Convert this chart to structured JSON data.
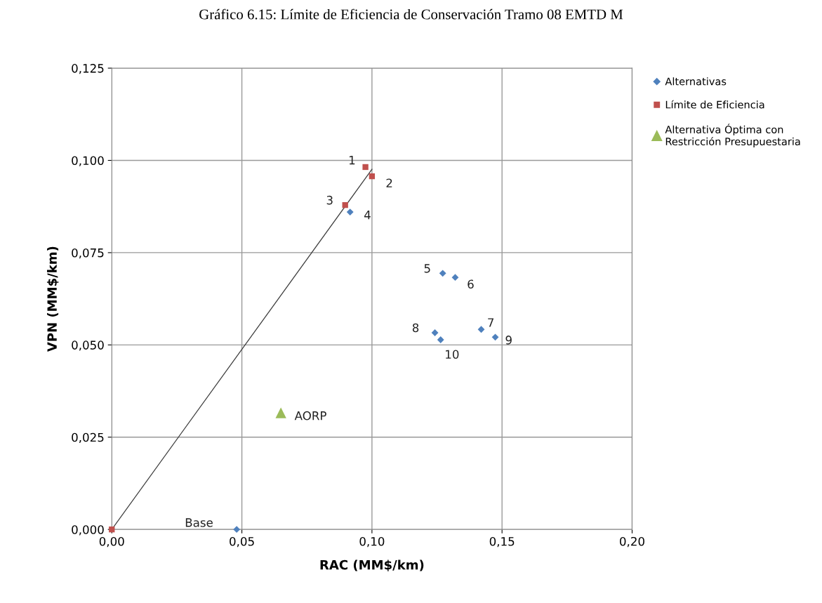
{
  "chart_data": {
    "type": "scatter",
    "title": "Gráfico 6.15: Límite de Eficiencia de Conservación Tramo 08 EMTD M",
    "xlabel": "RAC (MM$/km)",
    "ylabel": "VPN (MM$/km)",
    "xlim": [
      0,
      0.2
    ],
    "xticks": [
      {
        "value": 0,
        "label": "0,00"
      },
      {
        "value": 0.05,
        "label": "0,05"
      },
      {
        "value": 0.1,
        "label": "0,10"
      },
      {
        "value": 0.15,
        "label": "0,15"
      },
      {
        "value": 0.2,
        "label": "0,20"
      }
    ],
    "ylim": [
      0,
      0.125
    ],
    "yticks": [
      {
        "value": 0,
        "label": "0,000"
      },
      {
        "value": 0.025,
        "label": "0,025"
      },
      {
        "value": 0.05,
        "label": "0,050"
      },
      {
        "value": 0.075,
        "label": "0,075"
      },
      {
        "value": 0.1,
        "label": "0,100"
      },
      {
        "value": 0.125,
        "label": "0,125"
      }
    ],
    "grid": true,
    "legend": "right",
    "series": [
      {
        "type": "line",
        "color": "#3a3a3a",
        "marker": "none",
        "x": [
          0,
          0.1
        ],
        "values": [
          0,
          0.0976
        ]
      },
      {
        "name": "Alternativas",
        "color": "#4f81bd",
        "marker": "diamond",
        "x": [
          0.048,
          0.0916,
          0.1272,
          0.132,
          0.142,
          0.1242,
          0.1474,
          0.1264
        ],
        "values": [
          0,
          0.086,
          0.0694,
          0.0683,
          0.0542,
          0.0533,
          0.0521,
          0.0514
        ]
      },
      {
        "name": "Límite de Eficiencia",
        "color": "#c0504d",
        "marker": "square",
        "x": [
          0,
          0.0975,
          0.1,
          0.0897
        ],
        "values": [
          0,
          0.0982,
          0.0957,
          0.0879
        ]
      },
      {
        "name": "Alternativa Óptima con\nRestricción Presupuestaria",
        "color": "#9bbb59",
        "marker": "triangle",
        "x": [
          0.065
        ],
        "values": [
          0.0316
        ]
      }
    ],
    "annotations": [
      {
        "text": "Base",
        "x": 0.048,
        "y": 0
      },
      {
        "text": "4",
        "x": 0.0916,
        "y": 0.086
      },
      {
        "text": "5",
        "x": 0.1272,
        "y": 0.0694
      },
      {
        "text": "6",
        "x": 0.132,
        "y": 0.0683
      },
      {
        "text": "7",
        "x": 0.142,
        "y": 0.0542
      },
      {
        "text": "8",
        "x": 0.1242,
        "y": 0.0533
      },
      {
        "text": "9",
        "x": 0.1474,
        "y": 0.0521
      },
      {
        "text": "10",
        "x": 0.1264,
        "y": 0.0514
      },
      {
        "text": "1",
        "x": 0.0975,
        "y": 0.0982
      },
      {
        "text": "2",
        "x": 0.1,
        "y": 0.0957
      },
      {
        "text": "3",
        "x": 0.0897,
        "y": 0.0879
      },
      {
        "text": "AORP",
        "x": 0.065,
        "y": 0.0316
      }
    ]
  }
}
